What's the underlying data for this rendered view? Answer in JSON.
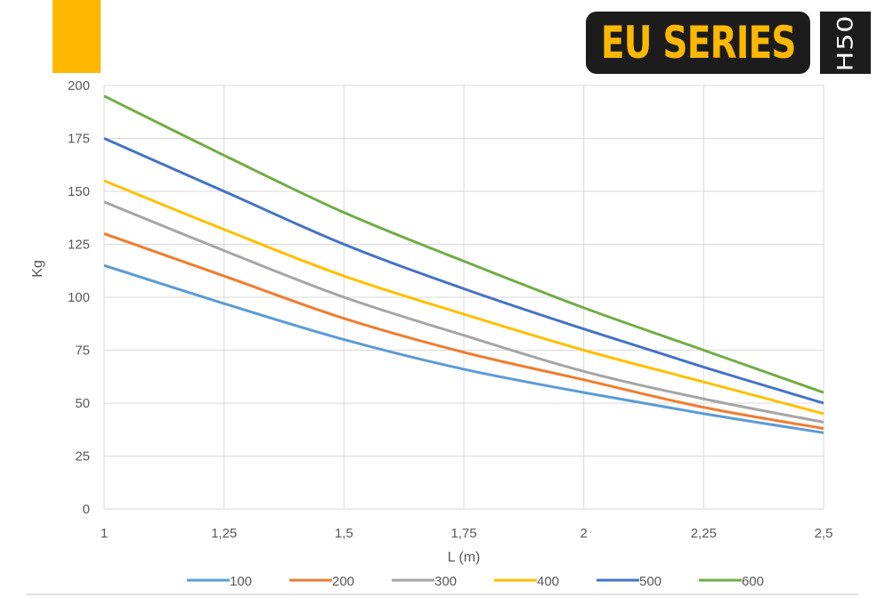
{
  "header": {
    "series_badge": "EU SERIES",
    "model_badge": "H50",
    "colors": {
      "accent": "#FFB800",
      "badge_bg": "#1C1C1C",
      "badge_text_series": "#FFB800",
      "badge_text_model": "#FFFFFF"
    }
  },
  "chart_data": {
    "type": "line",
    "title": "",
    "xlabel": "L (m)",
    "ylabel": "Kg",
    "x": [
      1,
      1.25,
      1.5,
      1.75,
      2,
      2.25,
      2.5
    ],
    "xticks": [
      "1",
      "1,25",
      "1,5",
      "1,75",
      "2",
      "2,25",
      "2,5"
    ],
    "xlim": [
      1,
      2.5
    ],
    "ylim": [
      0,
      200
    ],
    "yticks": [
      0,
      25,
      50,
      75,
      100,
      125,
      150,
      175,
      200
    ],
    "grid": true,
    "legend_position": "bottom",
    "series": [
      {
        "name": "100",
        "color": "#5B9BD5",
        "values": [
          115,
          97,
          80,
          66,
          55,
          45,
          36
        ]
      },
      {
        "name": "200",
        "color": "#ED7D31",
        "values": [
          130,
          110,
          90,
          74,
          61,
          48,
          38
        ]
      },
      {
        "name": "300",
        "color": "#A5A5A5",
        "values": [
          145,
          122,
          100,
          82,
          65,
          52,
          41
        ]
      },
      {
        "name": "400",
        "color": "#FFC000",
        "values": [
          155,
          132,
          110,
          92,
          75,
          60,
          45
        ]
      },
      {
        "name": "500",
        "color": "#4472C4",
        "values": [
          175,
          150,
          125,
          104,
          85,
          67,
          50
        ]
      },
      {
        "name": "600",
        "color": "#70AD47",
        "values": [
          195,
          167,
          140,
          117,
          95,
          75,
          55
        ]
      }
    ]
  }
}
